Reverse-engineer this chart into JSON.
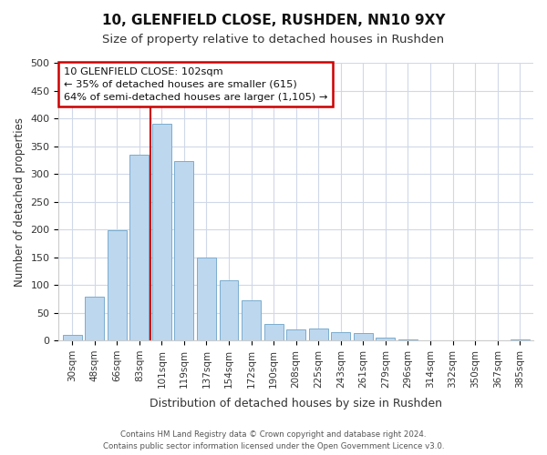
{
  "title": "10, GLENFIELD CLOSE, RUSHDEN, NN10 9XY",
  "subtitle": "Size of property relative to detached houses in Rushden",
  "xlabel": "Distribution of detached houses by size in Rushden",
  "ylabel": "Number of detached properties",
  "bar_labels": [
    "30sqm",
    "48sqm",
    "66sqm",
    "83sqm",
    "101sqm",
    "119sqm",
    "137sqm",
    "154sqm",
    "172sqm",
    "190sqm",
    "208sqm",
    "225sqm",
    "243sqm",
    "261sqm",
    "279sqm",
    "296sqm",
    "314sqm",
    "332sqm",
    "350sqm",
    "367sqm",
    "385sqm"
  ],
  "bar_heights": [
    10,
    78,
    198,
    335,
    390,
    323,
    150,
    109,
    73,
    30,
    20,
    21,
    15,
    14,
    5,
    2,
    0,
    0,
    0,
    0,
    1
  ],
  "bar_color": "#bdd7ee",
  "bar_edge_color": "#7aadcf",
  "annotation_line1": "10 GLENFIELD CLOSE: 102sqm",
  "annotation_line2": "← 35% of detached houses are smaller (615)",
  "annotation_line3": "64% of semi-detached houses are larger (1,105) →",
  "annotation_box_edge_color": "#cc0000",
  "red_line_x": 4,
  "ylim": [
    0,
    500
  ],
  "yticks": [
    0,
    50,
    100,
    150,
    200,
    250,
    300,
    350,
    400,
    450,
    500
  ],
  "footer_line1": "Contains HM Land Registry data © Crown copyright and database right 2024.",
  "footer_line2": "Contains public sector information licensed under the Open Government Licence v3.0.",
  "bg_color": "#ffffff",
  "grid_color": "#d0d8e8",
  "figsize": [
    6.0,
    5.0
  ],
  "dpi": 100
}
